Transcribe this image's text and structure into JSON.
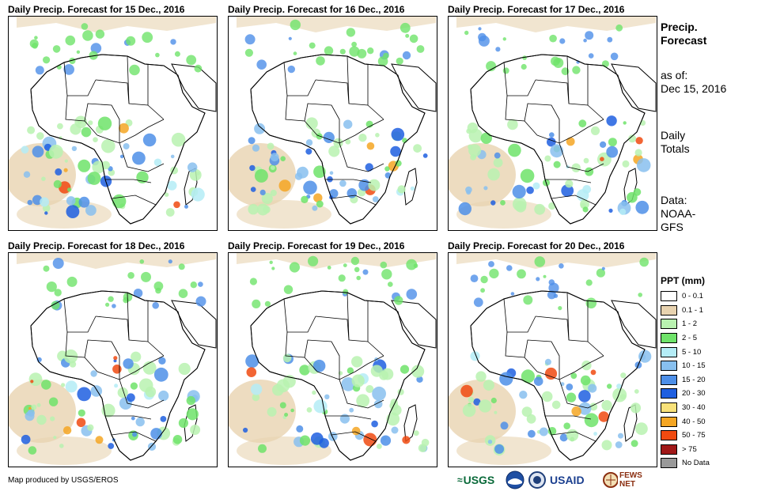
{
  "panels": [
    {
      "title": "Daily Precip. Forecast for 15 Dec., 2016"
    },
    {
      "title": "Daily Precip. Forecast for 16 Dec., 2016"
    },
    {
      "title": "Daily Precip. Forecast for 17 Dec., 2016"
    },
    {
      "title": "Daily Precip. Forecast for 18 Dec., 2016"
    },
    {
      "title": "Daily Precip. Forecast for 19 Dec., 2016"
    },
    {
      "title": "Daily Precip. Forecast for 20 Dec., 2016"
    }
  ],
  "side": {
    "title_line1": "Precip.",
    "title_line2": "Forecast",
    "asof_label": "as of:",
    "asof_date": "Dec 15, 2016",
    "daily_line1": "Daily",
    "daily_line2": "Totals",
    "data_line1": "Data:",
    "data_line2": "NOAA-",
    "data_line3": "GFS"
  },
  "legend": {
    "title": "PPT (mm)",
    "items": [
      {
        "label": "0 - 0.1",
        "color": "#ffffff"
      },
      {
        "label": "0.1 - 1",
        "color": "#e8d3b0"
      },
      {
        "label": "1 - 2",
        "color": "#b9f2b0"
      },
      {
        "label": "2 - 5",
        "color": "#6fe36a"
      },
      {
        "label": "5 - 10",
        "color": "#b4ecf6"
      },
      {
        "label": "10 - 15",
        "color": "#88c0ef"
      },
      {
        "label": "15 - 20",
        "color": "#4d8fe8"
      },
      {
        "label": "20 - 30",
        "color": "#1f5fe0"
      },
      {
        "label": "30 - 40",
        "color": "#f9e27a"
      },
      {
        "label": "40 - 50",
        "color": "#f5a623"
      },
      {
        "label": "50 - 75",
        "color": "#f04a10"
      },
      {
        "label": "> 75",
        "color": "#a01818"
      },
      {
        "label": "No Data",
        "color": "#999999"
      }
    ]
  },
  "footer": {
    "credit": "Map produced by USGS/EROS"
  },
  "logos": {
    "usgs": "USGS",
    "noaa": "NOAA",
    "usaid": "USAID",
    "fewsnet": "FEWS NET"
  }
}
